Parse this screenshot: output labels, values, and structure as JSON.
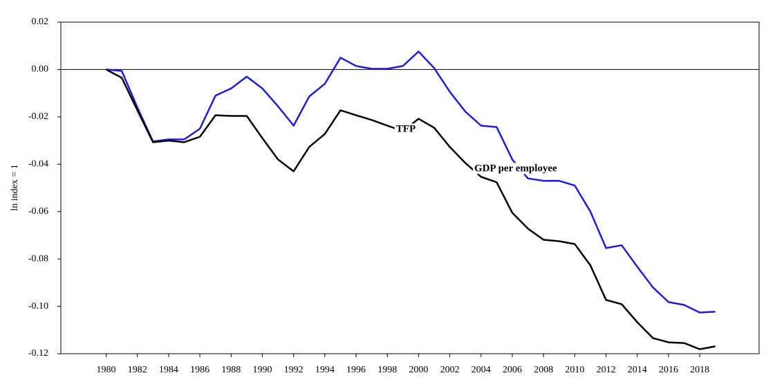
{
  "chart_data": {
    "type": "line",
    "y_label": "ln index = 1",
    "x": [
      1980,
      1981,
      1982,
      1983,
      1984,
      1985,
      1986,
      1987,
      1988,
      1989,
      1990,
      1991,
      1992,
      1993,
      1994,
      1995,
      1996,
      1997,
      1998,
      1999,
      2000,
      2001,
      2002,
      2003,
      2004,
      2005,
      2006,
      2007,
      2008,
      2009,
      2010,
      2011,
      2012,
      2013,
      2014,
      2015,
      2016,
      2017,
      2018,
      2019
    ],
    "series": [
      {
        "name": "GDP per employee",
        "color": "#1c1cd8",
        "values": [
          0,
          -0.0006,
          -0.016,
          -0.0304,
          -0.0295,
          -0.0295,
          -0.025,
          -0.011,
          -0.008,
          -0.003,
          -0.008,
          -0.0155,
          -0.0237,
          -0.0114,
          -0.006,
          0.005,
          0.0015,
          0.0003,
          0.0003,
          0.0015,
          0.0076,
          0.0006,
          -0.0094,
          -0.0178,
          -0.0237,
          -0.0243,
          -0.038,
          -0.046,
          -0.047,
          -0.047,
          -0.049,
          -0.06,
          -0.0754,
          -0.0742,
          -0.0833,
          -0.092,
          -0.0982,
          -0.0994,
          -0.1026,
          -0.1023
        ]
      },
      {
        "name": "TFP",
        "color": "#000000",
        "values": [
          0,
          -0.0035,
          -0.0172,
          -0.0307,
          -0.03,
          -0.0307,
          -0.0284,
          -0.0193,
          -0.0196,
          -0.0196,
          -0.029,
          -0.038,
          -0.043,
          -0.0327,
          -0.0272,
          -0.0172,
          -0.0193,
          -0.0213,
          -0.0237,
          -0.026,
          -0.0208,
          -0.0246,
          -0.0327,
          -0.0395,
          -0.0453,
          -0.0476,
          -0.0605,
          -0.0672,
          -0.0719,
          -0.0725,
          -0.0737,
          -0.0827,
          -0.0973,
          -0.0991,
          -0.1067,
          -0.1134,
          -0.1152,
          -0.1155,
          -0.1181,
          -0.1169
        ]
      }
    ],
    "xlim": [
      1977.1,
      2021.8
    ],
    "xticks": [
      1980,
      1982,
      1984,
      1986,
      1988,
      1990,
      1992,
      1994,
      1996,
      1998,
      2000,
      2002,
      2004,
      2006,
      2008,
      2010,
      2012,
      2014,
      2016,
      2018
    ],
    "ylim": [
      -0.12,
      0.02
    ],
    "yticks": [
      0.02,
      {
        "value": 0,
        "label": "0.00"
      },
      -0.02,
      -0.04,
      -0.06,
      -0.08,
      {
        "value": -0.1,
        "label": "-0.10"
      },
      -0.12
    ],
    "zero_line": true
  }
}
